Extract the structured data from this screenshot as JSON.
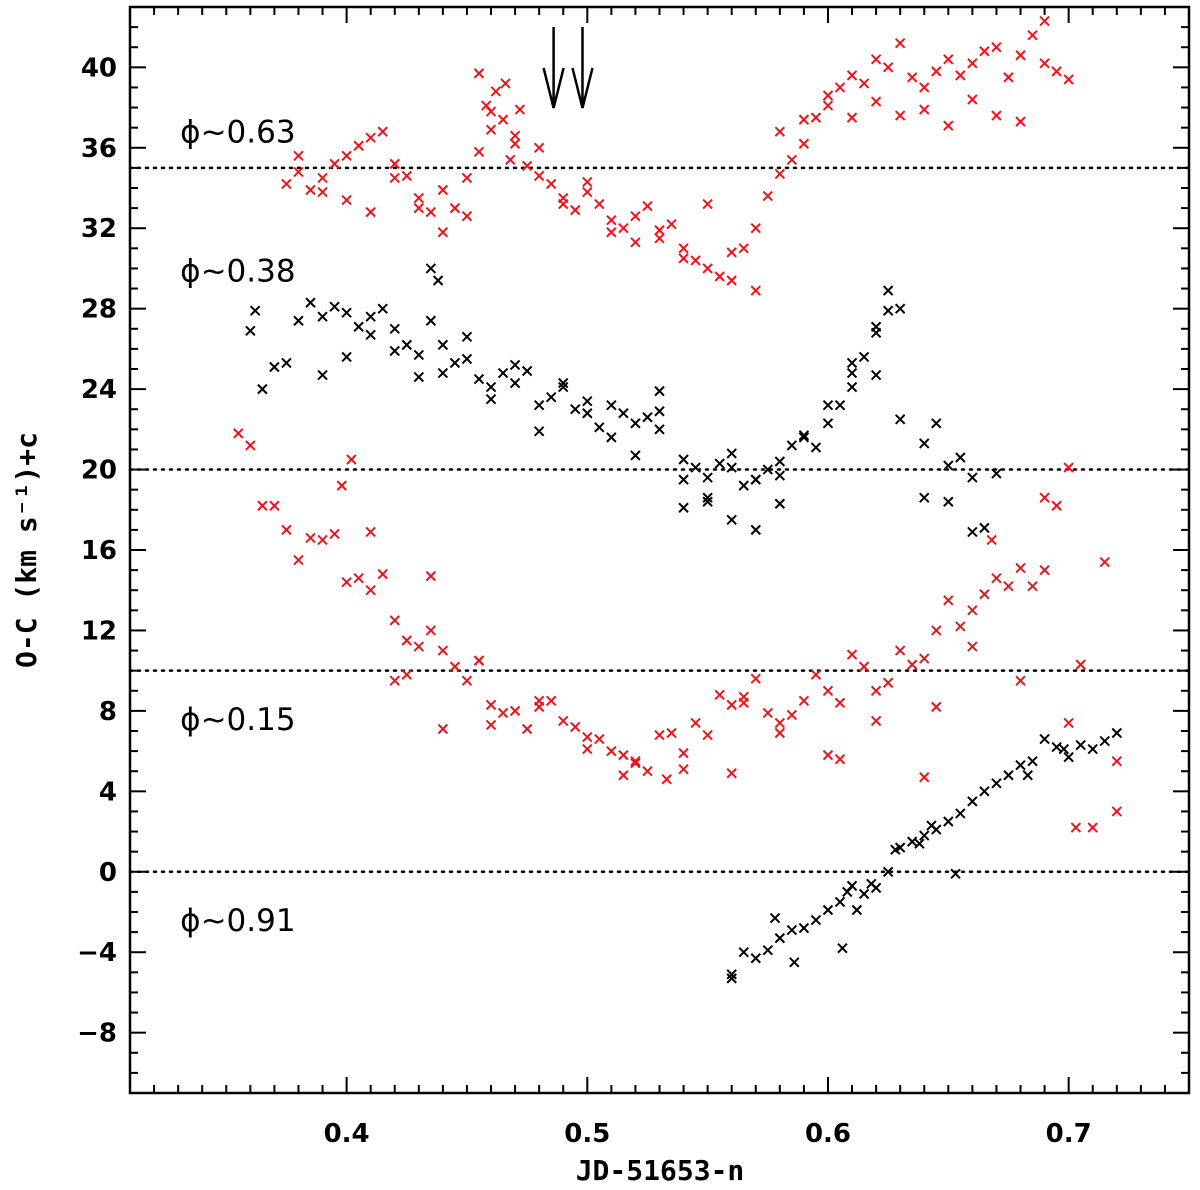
{
  "chart_data": {
    "type": "scatter",
    "title": "",
    "xlabel": "JD-51653-n",
    "ylabel": "O-C (km s⁻¹)+c",
    "xlim": [
      0.31,
      0.75
    ],
    "ylim": [
      -11,
      43
    ],
    "xticks": [
      0.4,
      0.5,
      0.6,
      0.7
    ],
    "xtick_labels": [
      "0.4",
      "0.5",
      "0.6",
      "0.7"
    ],
    "yticks": [
      -8,
      -4,
      0,
      4,
      8,
      12,
      16,
      20,
      24,
      28,
      32,
      36,
      40
    ],
    "ytick_labels": [
      "−8",
      "−4",
      "0",
      "4",
      "8",
      "12",
      "16",
      "20",
      "24",
      "28",
      "32",
      "36",
      "40"
    ],
    "reference_lines": [
      0,
      10,
      20,
      35
    ],
    "arrows_at_x": [
      0.486,
      0.498
    ],
    "annotations": [
      {
        "text": "ϕ∼0.63",
        "x": 0.33,
        "y": 36.8
      },
      {
        "text": "ϕ∼0.38",
        "x": 0.33,
        "y": 29.9
      },
      {
        "text": "ϕ∼0.15",
        "x": 0.33,
        "y": 7.6
      },
      {
        "text": "ϕ∼0.91",
        "x": 0.33,
        "y": -2.4
      }
    ],
    "series": [
      {
        "name": "phase 0.63",
        "color": "#e8161a",
        "x": [
          0.375,
          0.38,
          0.385,
          0.39,
          0.395,
          0.4,
          0.405,
          0.41,
          0.415,
          0.42,
          0.425,
          0.43,
          0.435,
          0.44,
          0.445,
          0.45,
          0.455,
          0.46,
          0.465,
          0.47,
          0.475,
          0.48,
          0.485,
          0.49,
          0.495,
          0.5,
          0.505,
          0.51,
          0.515,
          0.52,
          0.525,
          0.53,
          0.535,
          0.54,
          0.545,
          0.55,
          0.555,
          0.56,
          0.565,
          0.57,
          0.575,
          0.58,
          0.585,
          0.59,
          0.595,
          0.6,
          0.605,
          0.61,
          0.615,
          0.62,
          0.625,
          0.63,
          0.635,
          0.64,
          0.645,
          0.65,
          0.655,
          0.66,
          0.665,
          0.67,
          0.675,
          0.68,
          0.685,
          0.69,
          0.695,
          0.7,
          0.38,
          0.39,
          0.4,
          0.41,
          0.42,
          0.43,
          0.44,
          0.45,
          0.46,
          0.47,
          0.48,
          0.49,
          0.5,
          0.51,
          0.52,
          0.53,
          0.54,
          0.55,
          0.56,
          0.57,
          0.58,
          0.59,
          0.6,
          0.61,
          0.62,
          0.63,
          0.64,
          0.65,
          0.66,
          0.67,
          0.68,
          0.69,
          0.458,
          0.462,
          0.466,
          0.472,
          0.455,
          0.468
        ],
        "y": [
          34.2,
          34.8,
          33.9,
          34.5,
          35.2,
          35.6,
          36.1,
          36.5,
          36.8,
          35.2,
          34.6,
          33.5,
          32.8,
          33.9,
          33.0,
          34.5,
          35.8,
          36.9,
          37.4,
          36.2,
          35.1,
          34.6,
          34.2,
          33.5,
          32.9,
          33.8,
          33.2,
          32.4,
          32.0,
          32.6,
          33.1,
          31.5,
          32.2,
          31.0,
          30.4,
          30.0,
          29.6,
          30.8,
          31.0,
          32.0,
          33.6,
          34.7,
          35.4,
          36.2,
          37.5,
          38.6,
          39.0,
          39.6,
          39.2,
          40.4,
          40.0,
          41.2,
          39.5,
          39.0,
          39.8,
          40.4,
          39.6,
          40.2,
          40.8,
          41.0,
          39.5,
          40.6,
          41.6,
          40.2,
          39.8,
          39.4,
          35.6,
          33.8,
          33.4,
          32.8,
          34.5,
          33.0,
          31.8,
          32.6,
          37.8,
          36.6,
          36.0,
          33.2,
          34.3,
          31.8,
          31.3,
          31.9,
          30.5,
          33.2,
          29.4,
          28.9,
          36.8,
          37.4,
          38.1,
          37.5,
          38.3,
          37.6,
          37.9,
          37.1,
          38.4,
          37.6,
          37.3,
          42.3,
          38.1,
          38.8,
          39.2,
          37.9,
          39.7,
          35.4
        ]
      },
      {
        "name": "phase 0.38",
        "color": "#000000",
        "x": [
          0.36,
          0.365,
          0.37,
          0.375,
          0.38,
          0.385,
          0.39,
          0.395,
          0.4,
          0.405,
          0.41,
          0.415,
          0.42,
          0.425,
          0.43,
          0.435,
          0.44,
          0.445,
          0.45,
          0.455,
          0.46,
          0.465,
          0.47,
          0.475,
          0.48,
          0.485,
          0.49,
          0.495,
          0.5,
          0.505,
          0.51,
          0.515,
          0.52,
          0.525,
          0.53,
          0.54,
          0.545,
          0.55,
          0.555,
          0.56,
          0.565,
          0.57,
          0.575,
          0.58,
          0.585,
          0.59,
          0.595,
          0.6,
          0.605,
          0.61,
          0.615,
          0.62,
          0.625,
          0.63,
          0.64,
          0.645,
          0.65,
          0.655,
          0.66,
          0.665,
          0.67,
          0.39,
          0.4,
          0.41,
          0.42,
          0.43,
          0.44,
          0.45,
          0.46,
          0.47,
          0.48,
          0.49,
          0.5,
          0.51,
          0.52,
          0.53,
          0.54,
          0.55,
          0.56,
          0.57,
          0.58,
          0.59,
          0.6,
          0.61,
          0.62,
          0.625,
          0.61,
          0.62,
          0.63,
          0.64,
          0.65,
          0.66,
          0.435,
          0.438,
          0.362,
          0.53,
          0.54,
          0.55,
          0.56,
          0.57,
          0.58
        ],
        "y": [
          26.9,
          24.0,
          25.1,
          25.3,
          27.4,
          28.3,
          27.6,
          28.1,
          27.8,
          27.1,
          27.6,
          28.0,
          27.0,
          26.2,
          25.7,
          27.4,
          26.2,
          25.3,
          25.5,
          24.5,
          24.1,
          24.8,
          25.2,
          24.9,
          23.2,
          23.6,
          24.3,
          23.0,
          23.4,
          22.1,
          23.2,
          22.8,
          22.3,
          22.6,
          22.9,
          19.5,
          20.1,
          19.6,
          20.3,
          20.1,
          19.2,
          19.5,
          20.0,
          20.4,
          21.2,
          21.6,
          21.1,
          22.3,
          23.2,
          24.8,
          25.6,
          26.8,
          27.9,
          28.0,
          21.3,
          22.3,
          20.2,
          20.6,
          19.6,
          17.1,
          19.8,
          24.7,
          25.6,
          26.7,
          25.9,
          24.6,
          24.8,
          26.6,
          23.5,
          24.3,
          21.9,
          24.1,
          22.8,
          21.6,
          20.7,
          22.0,
          18.1,
          18.4,
          17.5,
          17.0,
          18.3,
          21.7,
          23.2,
          25.3,
          27.1,
          28.9,
          24.1,
          24.7,
          22.5,
          18.6,
          18.4,
          16.9,
          30.0,
          29.4,
          27.9,
          23.9,
          20.5,
          18.6,
          20.8,
          19.5,
          19.7
        ]
      },
      {
        "name": "phase 0.15",
        "color": "#e8161a",
        "x": [
          0.355,
          0.36,
          0.365,
          0.37,
          0.375,
          0.38,
          0.385,
          0.39,
          0.395,
          0.4,
          0.405,
          0.41,
          0.415,
          0.42,
          0.425,
          0.43,
          0.435,
          0.44,
          0.445,
          0.45,
          0.455,
          0.46,
          0.465,
          0.47,
          0.475,
          0.48,
          0.485,
          0.49,
          0.495,
          0.5,
          0.505,
          0.51,
          0.515,
          0.52,
          0.525,
          0.53,
          0.535,
          0.54,
          0.545,
          0.55,
          0.555,
          0.56,
          0.565,
          0.57,
          0.575,
          0.58,
          0.585,
          0.59,
          0.595,
          0.6,
          0.605,
          0.61,
          0.615,
          0.62,
          0.625,
          0.63,
          0.635,
          0.64,
          0.645,
          0.65,
          0.655,
          0.66,
          0.665,
          0.67,
          0.675,
          0.68,
          0.685,
          0.69,
          0.695,
          0.7,
          0.705,
          0.71,
          0.715,
          0.72,
          0.398,
          0.402,
          0.42,
          0.425,
          0.44,
          0.455,
          0.46,
          0.48,
          0.5,
          0.52,
          0.54,
          0.56,
          0.58,
          0.6,
          0.62,
          0.64,
          0.66,
          0.68,
          0.7,
          0.72,
          0.41,
          0.435,
          0.515,
          0.533,
          0.565,
          0.605,
          0.645,
          0.668,
          0.69,
          0.703
        ],
        "y": [
          21.8,
          21.2,
          18.2,
          18.2,
          17.0,
          15.5,
          16.6,
          16.5,
          16.8,
          14.4,
          14.6,
          14.0,
          14.8,
          12.5,
          11.5,
          11.2,
          12.0,
          11.0,
          10.2,
          9.5,
          10.5,
          8.3,
          7.9,
          8.0,
          7.1,
          8.2,
          8.5,
          7.5,
          7.2,
          6.7,
          6.6,
          6.0,
          5.8,
          5.4,
          5.0,
          6.8,
          6.9,
          5.1,
          7.4,
          6.8,
          8.8,
          8.3,
          8.4,
          9.6,
          7.9,
          7.4,
          7.8,
          8.5,
          9.8,
          9.0,
          8.4,
          10.8,
          10.2,
          9.0,
          9.4,
          11.0,
          10.3,
          10.6,
          12.0,
          13.5,
          12.2,
          13.0,
          13.8,
          14.6,
          14.2,
          15.1,
          14.2,
          15.0,
          18.2,
          20.1,
          10.3,
          2.2,
          15.4,
          3.0,
          19.2,
          20.5,
          9.5,
          9.8,
          7.1,
          10.5,
          7.3,
          8.5,
          6.1,
          5.5,
          5.9,
          4.9,
          6.9,
          5.8,
          7.5,
          4.7,
          11.2,
          9.5,
          7.4,
          5.5,
          16.9,
          14.7,
          4.8,
          4.6,
          8.7,
          5.6,
          8.2,
          16.5,
          18.6,
          2.2
        ]
      },
      {
        "name": "phase 0.91",
        "color": "#000000",
        "x": [
          0.56,
          0.565,
          0.57,
          0.575,
          0.58,
          0.585,
          0.59,
          0.595,
          0.6,
          0.605,
          0.61,
          0.615,
          0.62,
          0.625,
          0.63,
          0.635,
          0.64,
          0.645,
          0.65,
          0.655,
          0.66,
          0.665,
          0.67,
          0.675,
          0.68,
          0.685,
          0.69,
          0.695,
          0.7,
          0.705,
          0.71,
          0.715,
          0.72,
          0.56,
          0.578,
          0.586,
          0.606,
          0.628,
          0.653,
          0.683,
          0.698,
          0.608,
          0.612,
          0.618,
          0.638,
          0.643
        ],
        "y": [
          -5.1,
          -4.0,
          -4.3,
          -3.9,
          -3.3,
          -2.9,
          -2.8,
          -2.4,
          -1.9,
          -1.5,
          -0.7,
          -1.1,
          -0.8,
          0.0,
          1.2,
          1.5,
          1.8,
          2.1,
          2.5,
          2.9,
          3.5,
          4.0,
          4.4,
          4.8,
          5.3,
          5.5,
          6.6,
          6.2,
          5.7,
          6.3,
          6.1,
          6.5,
          6.9,
          -5.3,
          -2.3,
          -4.5,
          -3.8,
          1.1,
          -0.1,
          4.8,
          6.1,
          -1.0,
          -1.9,
          -0.6,
          1.4,
          2.3
        ]
      }
    ]
  }
}
